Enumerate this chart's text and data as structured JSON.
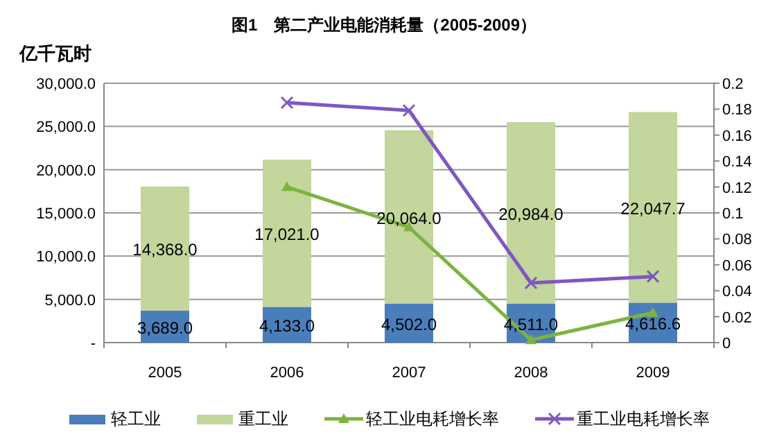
{
  "chart_data": {
    "type": "bar",
    "title": "图1　第二产业电能消耗量（2005-2009）",
    "ylabel": "亿千瓦时",
    "categories": [
      "2005",
      "2006",
      "2007",
      "2008",
      "2009"
    ],
    "stacked": true,
    "grid": "y",
    "legend": "bottom",
    "ylim": [
      0,
      30000
    ],
    "yticks": [
      {
        "value": 0,
        "label": "-"
      },
      {
        "value": 5000,
        "label": "5,000.0"
      },
      {
        "value": 10000,
        "label": "10,000.0"
      },
      {
        "value": 15000,
        "label": "15,000.0"
      },
      {
        "value": 20000,
        "label": "20,000.0"
      },
      {
        "value": 25000,
        "label": "25,000.0"
      },
      {
        "value": 30000,
        "label": "30,000.0"
      }
    ],
    "y2lim": [
      0,
      0.2
    ],
    "y2ticks": [
      0,
      0.02,
      0.04,
      0.06,
      0.08,
      0.1,
      0.12,
      0.14,
      0.16,
      0.18,
      0.2
    ],
    "series": [
      {
        "name": "轻工业",
        "color": "#4a7ebb",
        "values": [
          3689,
          4133,
          4502,
          4511,
          4616.6
        ],
        "value_labels": [
          "3,689.0",
          "4,133.0",
          "4,502.0",
          "4,511.0",
          "4,616.6"
        ]
      },
      {
        "name": "重工业",
        "color": "#c3d69b",
        "values": [
          14368,
          17021,
          20064,
          20984,
          22047.7
        ],
        "value_labels": [
          "14,368.0",
          "17,021.0",
          "20,064.0",
          "20,984.0",
          "22,047.7"
        ]
      },
      {
        "name": "轻工业电耗增长率",
        "type": "line",
        "axis": "y2",
        "marker": "triangle",
        "color": "#7cb342",
        "values": [
          null,
          0.12,
          0.089,
          0.002,
          0.023
        ]
      },
      {
        "name": "重工业电耗增长率",
        "type": "line",
        "axis": "y2",
        "marker": "cross",
        "color": "#7e57c2",
        "values": [
          null,
          0.185,
          0.179,
          0.046,
          0.051
        ]
      }
    ]
  }
}
